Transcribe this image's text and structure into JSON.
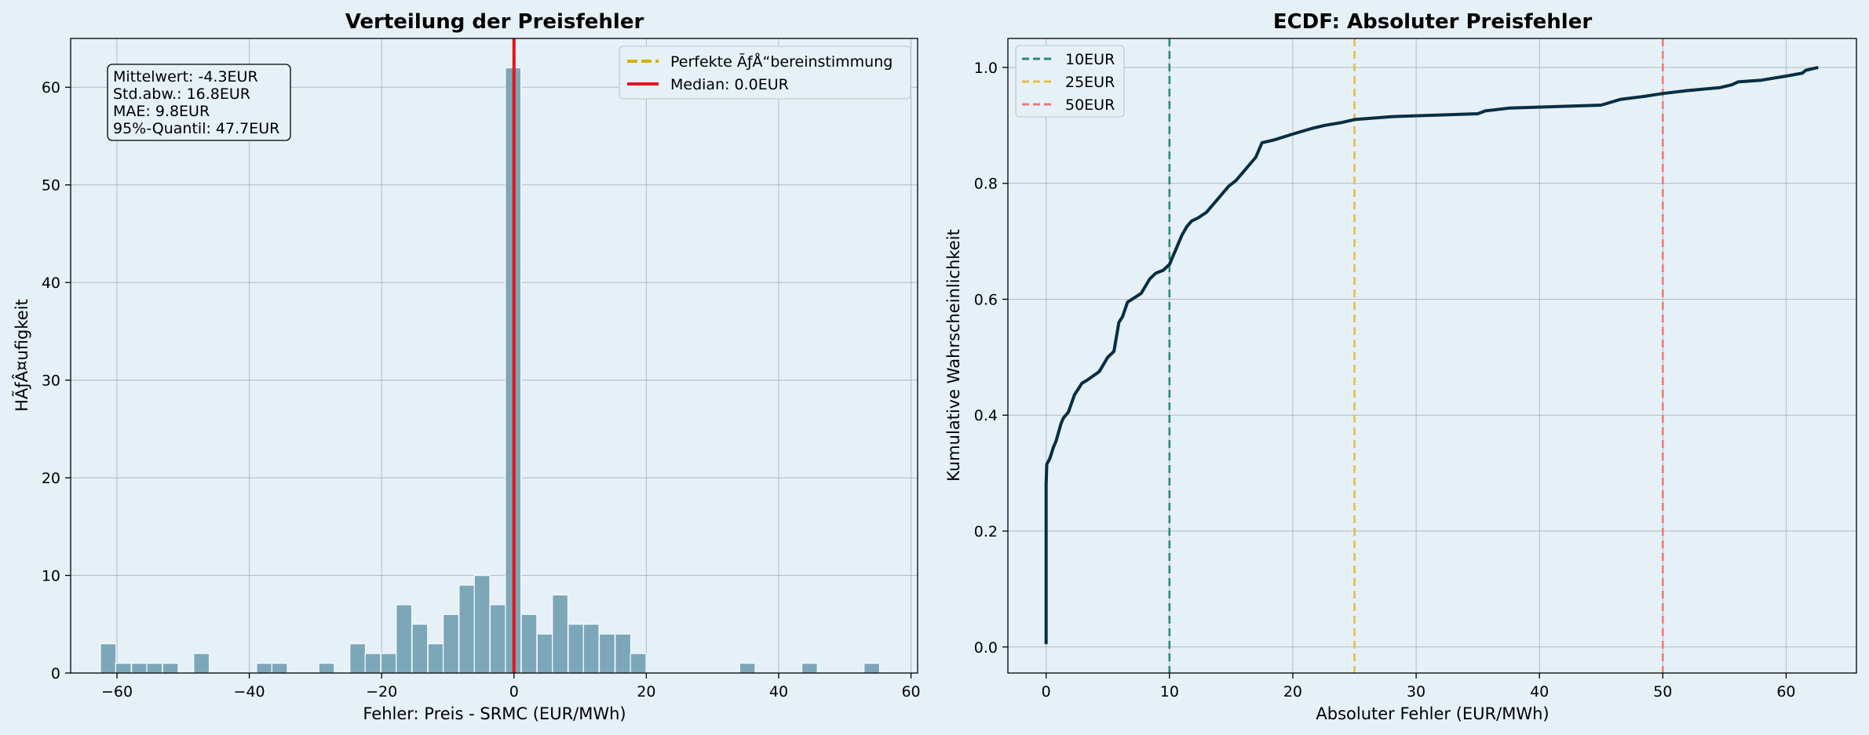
{
  "colors": {
    "background": "#e6f0f7",
    "axes_bg": "#e6f0f7",
    "grid": "#a0a8b0",
    "hist_bar": "#7ba7b8",
    "median": "#e3141f",
    "perfect": "#d4b106",
    "ecdf": "#062e43",
    "line_10": "#2a8a74",
    "line_25": "#e0c040",
    "line_50": "#ee7b78"
  },
  "chart_data": [
    {
      "type": "bar",
      "title": "Verteilung der Preisfehler",
      "xlabel": "Fehler: Preis - SRMC (EUR/MWh)",
      "ylabel": "HÃƒÂ¤ufigkeit",
      "xlim": [
        -67,
        61
      ],
      "ylim": [
        0,
        65
      ],
      "xticks": [
        -60,
        -40,
        -20,
        0,
        20,
        40,
        60
      ],
      "xtick_labels": [
        "−60",
        "−40",
        "−20",
        "0",
        "20",
        "40",
        "60"
      ],
      "yticks": [
        0,
        10,
        20,
        30,
        40,
        50,
        60
      ],
      "ytick_labels": [
        "0",
        "10",
        "20",
        "30",
        "40",
        "50",
        "60"
      ],
      "bin_width": 2.35,
      "bins": [
        {
          "x": -62.5,
          "count": 3
        },
        {
          "x": -60.2,
          "count": 1
        },
        {
          "x": -57.8,
          "count": 1
        },
        {
          "x": -55.5,
          "count": 1
        },
        {
          "x": -53.1,
          "count": 1
        },
        {
          "x": -48.4,
          "count": 2
        },
        {
          "x": -38.9,
          "count": 1
        },
        {
          "x": -36.6,
          "count": 1
        },
        {
          "x": -29.5,
          "count": 1
        },
        {
          "x": -24.8,
          "count": 3
        },
        {
          "x": -22.5,
          "count": 2
        },
        {
          "x": -20.1,
          "count": 2
        },
        {
          "x": -17.8,
          "count": 7
        },
        {
          "x": -15.4,
          "count": 5
        },
        {
          "x": -13.0,
          "count": 3
        },
        {
          "x": -10.7,
          "count": 6
        },
        {
          "x": -8.3,
          "count": 9
        },
        {
          "x": -6.0,
          "count": 10
        },
        {
          "x": -3.6,
          "count": 7
        },
        {
          "x": -1.3,
          "count": 62
        },
        {
          "x": 1.1,
          "count": 6
        },
        {
          "x": 3.5,
          "count": 4
        },
        {
          "x": 5.8,
          "count": 8
        },
        {
          "x": 8.2,
          "count": 5
        },
        {
          "x": 10.5,
          "count": 5
        },
        {
          "x": 12.9,
          "count": 4
        },
        {
          "x": 15.3,
          "count": 4
        },
        {
          "x": 17.6,
          "count": 2
        },
        {
          "x": 34.1,
          "count": 1
        },
        {
          "x": 43.5,
          "count": 1
        },
        {
          "x": 52.9,
          "count": 1
        }
      ],
      "vlines": [
        {
          "x": 0,
          "label": "Perfekte ÃƒÅ“bereinstimmung",
          "style": "dashed",
          "color": "#d4b106"
        },
        {
          "x": 0.0,
          "label": "Median: 0.0EUR",
          "style": "solid",
          "color": "#e3141f"
        }
      ],
      "legend": {
        "placement": "top-right",
        "entries": [
          "Perfekte ÃƒÅ“bereinstimmung",
          "Median: 0.0EUR"
        ]
      },
      "stats_box": {
        "placement": "top-left",
        "lines": [
          "Mittelwert: -4.3EUR",
          "Std.abw.: 16.8EUR",
          "MAE: 9.8EUR",
          "95%-Quantil: 47.7EUR"
        ]
      },
      "grid": true
    },
    {
      "type": "line",
      "title": "ECDF: Absoluter Preisfehler",
      "xlabel": "Absoluter Fehler (EUR/MWh)",
      "ylabel": "Kumulative Wahrscheinlichkeit",
      "xlim": [
        -3.1,
        65.7
      ],
      "ylim": [
        -0.045,
        1.05
      ],
      "xticks": [
        0,
        10,
        20,
        30,
        40,
        50,
        60
      ],
      "xtick_labels": [
        "0",
        "10",
        "20",
        "30",
        "40",
        "50",
        "60"
      ],
      "yticks": [
        0,
        0.2,
        0.4,
        0.6,
        0.8,
        1.0
      ],
      "ytick_labels": [
        "0.0",
        "0.2",
        "0.4",
        "0.6",
        "0.8",
        "1.0"
      ],
      "series": [
        {
          "x": [
            0,
            0,
            0,
            0.05,
            0.3,
            0.6,
            0.8,
            1.2,
            1.4,
            1.8,
            2.3,
            2.6,
            2.9,
            3.3,
            4.3,
            5.0,
            5.5,
            5.9,
            6.2,
            6.6,
            7.7,
            8.4,
            8.9,
            9.5,
            10.0,
            10.5,
            11.0,
            11.4,
            11.8,
            12.3,
            13.0,
            13.8,
            14.8,
            15.4,
            16.0,
            16.4,
            17.0,
            17.5,
            18.5,
            20.0,
            21.6,
            22.6,
            24.0,
            25.0,
            28.0,
            35.0,
            35.6,
            37.6,
            45.0,
            46.6,
            48.5,
            50.0,
            52.0,
            54.6,
            55.6,
            56.1,
            58.0,
            60.0,
            61.3,
            61.6,
            62.6
          ],
          "y": [
            0.005,
            0.2,
            0.28,
            0.315,
            0.325,
            0.345,
            0.355,
            0.385,
            0.395,
            0.405,
            0.435,
            0.445,
            0.455,
            0.46,
            0.475,
            0.5,
            0.51,
            0.56,
            0.57,
            0.595,
            0.61,
            0.635,
            0.645,
            0.65,
            0.66,
            0.685,
            0.71,
            0.725,
            0.735,
            0.74,
            0.75,
            0.77,
            0.795,
            0.805,
            0.82,
            0.83,
            0.845,
            0.87,
            0.875,
            0.885,
            0.895,
            0.9,
            0.905,
            0.91,
            0.915,
            0.92,
            0.925,
            0.93,
            0.935,
            0.945,
            0.95,
            0.955,
            0.96,
            0.965,
            0.97,
            0.975,
            0.978,
            0.985,
            0.99,
            0.995,
            1.0
          ]
        }
      ],
      "vlines": [
        {
          "x": 10,
          "label": "10EUR",
          "style": "dashed",
          "color": "#2a8a74"
        },
        {
          "x": 25,
          "label": "25EUR",
          "style": "dashed",
          "color": "#e0c040"
        },
        {
          "x": 50,
          "label": "50EUR",
          "style": "dashed",
          "color": "#ee7b78"
        }
      ],
      "legend": {
        "placement": "top-left",
        "entries": [
          "10EUR",
          "25EUR",
          "50EUR"
        ]
      },
      "grid": true
    }
  ]
}
